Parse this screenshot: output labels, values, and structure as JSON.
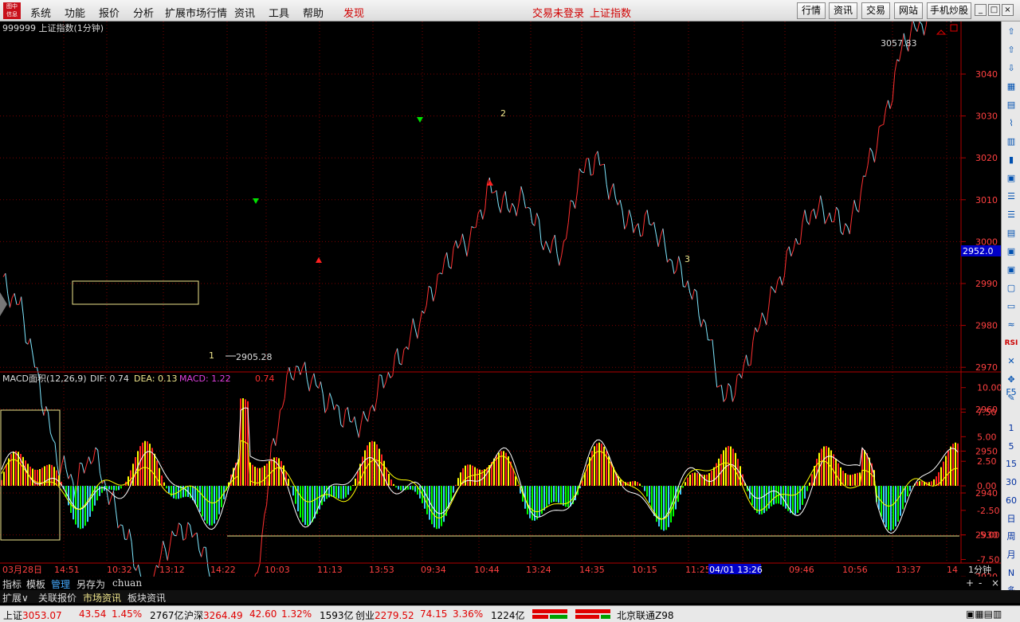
{
  "menubar": {
    "logo_text": "图中 信息",
    "items": [
      "系统",
      "功能",
      "报价",
      "分析",
      "扩展市场行情",
      "资讯",
      "工具",
      "帮助"
    ],
    "discover": "发现",
    "status_text": "交易未登录",
    "index_name": "上证指数",
    "buttons": [
      "行情",
      "资讯",
      "交易",
      "网站",
      "手机炒股"
    ]
  },
  "chart": {
    "title": "999999 上证指数(1分钟)",
    "high_label": "3057.83",
    "low_label": "2905.28",
    "current_price": "2952.0",
    "wave_labels": [
      "1",
      "2",
      "3"
    ],
    "price_ticks": [
      "3040",
      "3030",
      "3020",
      "3010",
      "3000",
      "2990",
      "2980",
      "2970",
      "2960",
      "2950",
      "2940",
      "2930",
      "2920"
    ],
    "macd": {
      "name": "MACD面积(12,26,9)",
      "dif": "DIF: 0.74",
      "dea": "DEA: 0.13",
      "macd": "MACD: 1.22",
      "extra": "0.74",
      "ticks": [
        "10.00",
        "7.50",
        "5.00",
        "2.50",
        "0.00",
        "-2.50",
        "-5.00",
        "-7.50"
      ]
    },
    "time_labels": [
      "03月28日",
      "14:51",
      "10:32",
      "13:12",
      "14:22",
      "10:03",
      "11:13",
      "13:53",
      "09:34",
      "10:44",
      "13:24",
      "14:35",
      "10:15",
      "11:25",
      "04/01 13:26",
      "09:46",
      "10:56",
      "13:37",
      "14"
    ],
    "period": "1分钟"
  },
  "chart_data": {
    "type": "line",
    "title": "999999 上证指数(1分钟)",
    "ylim": [
      2910,
      3060
    ],
    "high": 3057.83,
    "low": 2905.28,
    "current": 2952.0,
    "series": [
      {
        "name": "上证指数",
        "values": [
          2990,
          2984,
          2966,
          2948,
          2942,
          2950,
          2938,
          2928,
          2916,
          2927,
          2932,
          2928,
          2912,
          2908,
          2917,
          2952,
          2970,
          2968,
          2962,
          2958,
          2956,
          2966,
          2972,
          2980,
          2990,
          2998,
          3001,
          3013,
          3008,
          3010,
          3000,
          2997,
          3016,
          3020,
          3010,
          3003,
          3005,
          2996,
          2990,
          2980,
          2962,
          2968,
          2980,
          2990,
          3000,
          3008,
          3006,
          3003,
          3018,
          3030,
          3048,
          3052,
          3056,
          3053
        ]
      }
    ],
    "macd": {
      "dif": 0.74,
      "dea": 0.13,
      "macd": 1.22,
      "ylim": [
        -7.5,
        10
      ]
    }
  },
  "rightbar_icons": [
    "up-icon",
    "up-arrow-icon",
    "down-arrow-icon",
    "grid-icon",
    "table-icon",
    "chart-icon",
    "bar-icon",
    "k-icon",
    "f10-icon",
    "list-icon",
    "list-icon",
    "book-icon",
    "fiz-icon",
    "f10-icon",
    "info-icon",
    "chat-icon",
    "wave-icon",
    "rsi-icon",
    "x-icon",
    "move-icon",
    "edit-icon"
  ],
  "rightbar_labels": {
    "rsi": "RSI",
    "f5": "F5",
    "periods": [
      "1",
      "5",
      "15",
      "30",
      "60",
      "日",
      "周",
      "月",
      "N",
      "多"
    ]
  },
  "tabs": [
    "指标",
    "模板",
    "管理",
    "另存为",
    "chuan"
  ],
  "tabs2": [
    "扩展∨",
    "关联报价",
    "市场资讯",
    "板块资讯"
  ],
  "statusbar": {
    "sh_name": "上证",
    "sh_price": "3053.07",
    "sh_change": "43.54",
    "sh_pct": "1.45%",
    "sh_vol": "2767亿",
    "hs_name": "沪深",
    "hs_price": "3264.49",
    "hs_change": "42.60",
    "hs_pct": "1.32%",
    "hs_vol": "1593亿",
    "cy_name": "创业",
    "cy_price": "2279.52",
    "cy_change": "74.15",
    "cy_pct": "3.36%",
    "cy_vol": "1224亿",
    "broker": "北京联通Z98"
  }
}
